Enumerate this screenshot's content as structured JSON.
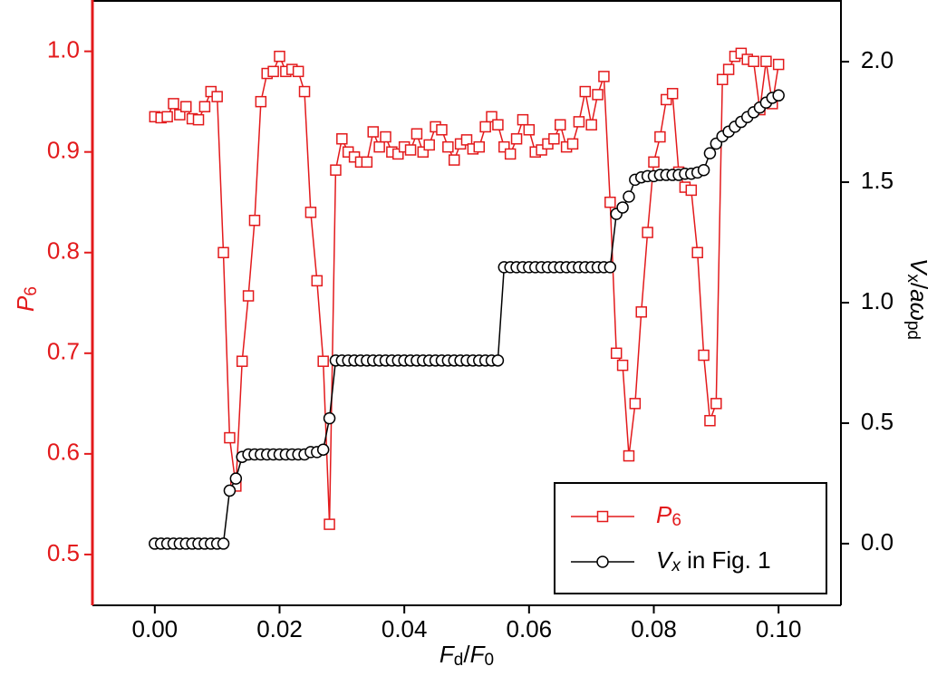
{
  "chart_data": {
    "type": "line",
    "x_label": "Fd/F0",
    "y_label": "P6",
    "y2_label": "Vx/aωpd",
    "x": [
      0.0,
      0.001,
      0.002,
      0.003,
      0.004,
      0.005,
      0.006,
      0.007,
      0.008,
      0.009,
      0.01,
      0.011,
      0.012,
      0.013,
      0.014,
      0.015,
      0.016,
      0.017,
      0.018,
      0.019,
      0.02,
      0.021,
      0.022,
      0.023,
      0.024,
      0.025,
      0.026,
      0.027,
      0.028,
      0.029,
      0.03,
      0.031,
      0.032,
      0.033,
      0.034,
      0.035,
      0.036,
      0.037,
      0.038,
      0.039,
      0.04,
      0.041,
      0.042,
      0.043,
      0.044,
      0.045,
      0.046,
      0.047,
      0.048,
      0.049,
      0.05,
      0.051,
      0.052,
      0.053,
      0.054,
      0.055,
      0.056,
      0.057,
      0.058,
      0.059,
      0.06,
      0.061,
      0.062,
      0.063,
      0.064,
      0.065,
      0.066,
      0.067,
      0.068,
      0.069,
      0.07,
      0.071,
      0.072,
      0.073,
      0.074,
      0.075,
      0.076,
      0.077,
      0.078,
      0.079,
      0.08,
      0.081,
      0.082,
      0.083,
      0.084,
      0.085,
      0.086,
      0.087,
      0.088,
      0.089,
      0.09,
      0.091,
      0.092,
      0.093,
      0.094,
      0.095,
      0.096,
      0.097,
      0.098,
      0.099,
      0.1
    ],
    "series": [
      {
        "name": "P6",
        "color": "#e31a1c",
        "marker": "square",
        "values": [
          0.935,
          0.934,
          0.935,
          0.948,
          0.937,
          0.945,
          0.933,
          0.932,
          0.945,
          0.96,
          0.955,
          0.8,
          0.616,
          0.568,
          0.692,
          0.757,
          0.832,
          0.95,
          0.978,
          0.98,
          0.995,
          0.98,
          0.982,
          0.98,
          0.96,
          0.84,
          0.772,
          0.692,
          0.53,
          0.882,
          0.913,
          0.9,
          0.895,
          0.89,
          0.89,
          0.92,
          0.905,
          0.915,
          0.9,
          0.898,
          0.905,
          0.902,
          0.918,
          0.9,
          0.907,
          0.925,
          0.922,
          0.905,
          0.892,
          0.908,
          0.912,
          0.903,
          0.905,
          0.925,
          0.935,
          0.927,
          0.905,
          0.898,
          0.913,
          0.932,
          0.922,
          0.9,
          0.902,
          0.908,
          0.913,
          0.927,
          0.905,
          0.908,
          0.93,
          0.96,
          0.927,
          0.957,
          0.975,
          0.85,
          0.7,
          0.688,
          0.598,
          0.65,
          0.741,
          0.82,
          0.89,
          0.915,
          0.952,
          0.958,
          0.88,
          0.865,
          0.862,
          0.8,
          0.698,
          0.633,
          0.65,
          0.972,
          0.982,
          0.995,
          0.998,
          0.992,
          0.99,
          0.942,
          0.99,
          0.948,
          0.987
        ]
      },
      {
        "name": "Vx in Fig. 1",
        "color": "#000000",
        "marker": "circle",
        "axis": "y2",
        "values": [
          0,
          0,
          0,
          0,
          0,
          0,
          0,
          0,
          0,
          0,
          0,
          0,
          0.22,
          0.27,
          0.36,
          0.37,
          0.37,
          0.37,
          0.37,
          0.37,
          0.37,
          0.37,
          0.37,
          0.37,
          0.37,
          0.38,
          0.38,
          0.39,
          0.52,
          0.76,
          0.76,
          0.76,
          0.76,
          0.76,
          0.76,
          0.76,
          0.76,
          0.76,
          0.76,
          0.76,
          0.76,
          0.76,
          0.76,
          0.76,
          0.76,
          0.76,
          0.76,
          0.76,
          0.76,
          0.76,
          0.76,
          0.76,
          0.76,
          0.76,
          0.76,
          0.76,
          1.147,
          1.147,
          1.147,
          1.147,
          1.147,
          1.147,
          1.147,
          1.147,
          1.147,
          1.147,
          1.147,
          1.147,
          1.147,
          1.147,
          1.147,
          1.147,
          1.147,
          1.147,
          1.368,
          1.395,
          1.44,
          1.51,
          1.52,
          1.525,
          1.525,
          1.53,
          1.53,
          1.53,
          1.53,
          1.535,
          1.535,
          1.54,
          1.55,
          1.62,
          1.66,
          1.69,
          1.71,
          1.73,
          1.75,
          1.77,
          1.79,
          1.81,
          1.83,
          1.85,
          1.86
        ]
      }
    ],
    "xlim": [
      -0.01,
      0.11
    ],
    "xticks": [
      {
        "value": 0,
        "label": "0.00"
      },
      {
        "value": 0.02,
        "label": "0.02"
      },
      {
        "value": 0.04,
        "label": "0.04"
      },
      {
        "value": 0.06,
        "label": "0.06"
      },
      {
        "value": 0.08,
        "label": "0.08"
      },
      {
        "value": 0.1,
        "label": "0.10"
      }
    ],
    "ylim": [
      0.4495,
      1.051
    ],
    "yticks": [
      0.5,
      0.6,
      0.7,
      0.8,
      0.9,
      {
        "value": 1,
        "label": "1.0"
      }
    ],
    "y2lim": [
      -0.256,
      2.256
    ],
    "y2ticks": [
      {
        "value": 0,
        "label": "0.0"
      },
      0.5,
      {
        "value": 1,
        "label": "1.0"
      },
      1.5,
      {
        "value": 2,
        "label": "2.0"
      }
    ],
    "axis_color": "#e31a1c",
    "legend": "lower right"
  }
}
